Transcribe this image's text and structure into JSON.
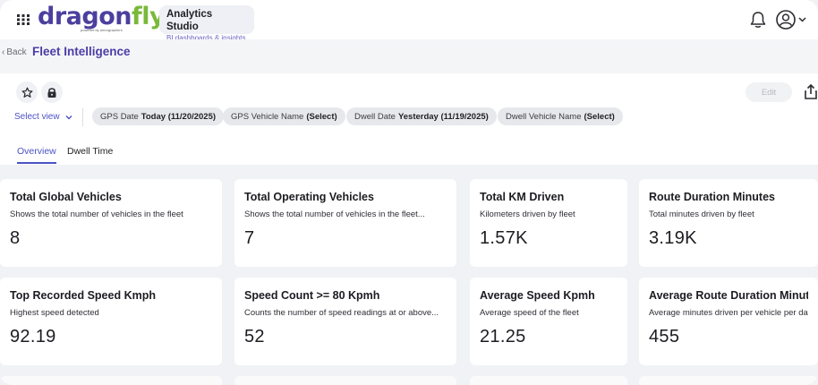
{
  "header": {
    "logo_main": "dragon",
    "logo_accent": "fly",
    "logo_tagline": "powered by amorgraphers",
    "app_title": "Analytics Studio",
    "app_subtitle": "BI dashboards & insights"
  },
  "breadcrumb": {
    "back_label": "Back",
    "page_title": "Fleet Intelligence"
  },
  "toolbar": {
    "edit_label": "Edit",
    "select_view_label": "Select view"
  },
  "filters": [
    {
      "label": "GPS Date",
      "value": "Today (11/20/2025)"
    },
    {
      "label": "GPS Vehicle Name",
      "value": "(Select)"
    },
    {
      "label": "Dwell Date",
      "value": "Yesterday (11/19/2025)"
    },
    {
      "label": "Dwell Vehicle Name",
      "value": "(Select)"
    }
  ],
  "tabs": [
    {
      "label": "Overview",
      "active": true
    },
    {
      "label": "Dwell Time",
      "active": false
    }
  ],
  "cards": [
    {
      "title": "Total Global Vehicles",
      "description": "Shows the total number of vehicles in the fleet",
      "value": "8"
    },
    {
      "title": "Total Operating Vehicles",
      "description": "Shows the total number of vehicles in the fleet...",
      "value": "7"
    },
    {
      "title": "Total KM Driven",
      "description": "Kilometers driven by fleet",
      "value": "1.57K"
    },
    {
      "title": "Route Duration Minutes",
      "description": "Total minutes driven by fleet",
      "value": "3.19K"
    },
    {
      "title": "Top Recorded Speed Kmph",
      "description": "Highest speed detected",
      "value": "92.19"
    },
    {
      "title": "Speed Count >= 80 Kpmh",
      "description": "Counts the number of speed readings at or above...",
      "value": "52"
    },
    {
      "title": "Average Speed Kpmh",
      "description": "Average speed of the fleet",
      "value": "21.25"
    },
    {
      "title": "Average Route Duration Minutes",
      "description": "Average minutes driven per vehicle per day",
      "value": "455"
    }
  ],
  "colors": {
    "brand": "#4b3f9e",
    "brand_accent": "#79b93a",
    "link": "#4b52c6",
    "background": "#f1f2f5"
  },
  "icons": [
    "apps-grid-icon",
    "bell-icon",
    "user-circle-icon",
    "chevron-down-icon",
    "star-icon",
    "lock-icon",
    "share-icon"
  ]
}
